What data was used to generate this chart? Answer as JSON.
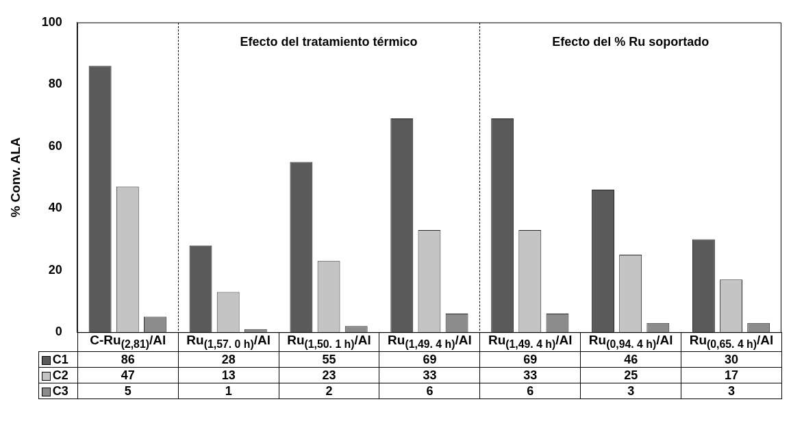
{
  "chart_data": {
    "type": "bar",
    "ylabel": "% Conv. ALA",
    "categories": [
      "C-Ru$_{(2,81)}$/Al",
      "Ru$_{(1,57. 0 h)}$/Al",
      "Ru$_{(1,50. 1 h)}$/Al",
      "Ru$_{(1,49. 4 h)}$/Al",
      "Ru$_{(1,49. 4 h)}$/Al",
      "Ru$_{(0,94. 4 h)}$/Al",
      "Ru$_{(0,65. 4 h)}$/Al"
    ],
    "series": [
      {
        "name": "C1",
        "color": "#5a5a5a",
        "values": [
          86,
          28,
          55,
          69,
          69,
          46,
          30
        ]
      },
      {
        "name": "C2",
        "color": "#c4c4c4",
        "values": [
          47,
          13,
          23,
          33,
          33,
          25,
          17
        ]
      },
      {
        "name": "C3",
        "color": "#8c8c8c",
        "values": [
          5,
          1,
          2,
          6,
          6,
          3,
          3
        ]
      }
    ],
    "ylim": [
      0,
      100
    ],
    "yticks": [
      0,
      20,
      40,
      60,
      80,
      100
    ],
    "grid": false,
    "legend": "bottom",
    "data_labels": true,
    "annotations": [
      "Efecto del tratamiento térmico",
      "Efecto del % Ru soportado"
    ]
  }
}
